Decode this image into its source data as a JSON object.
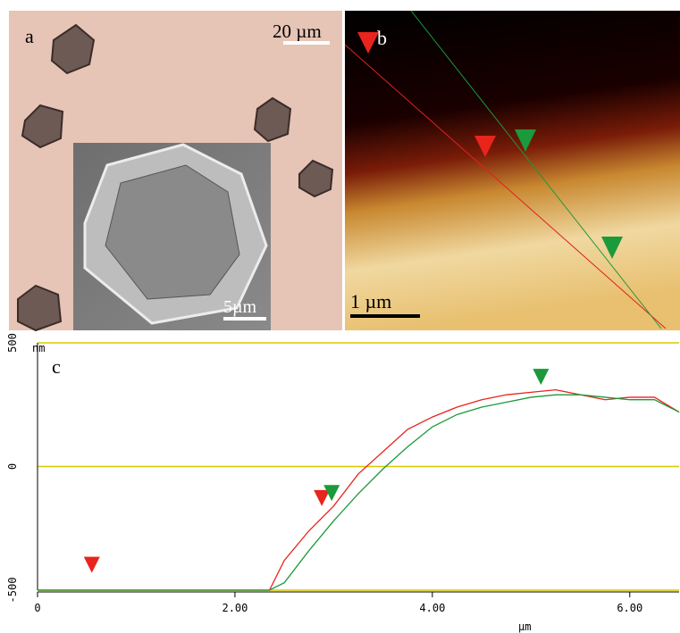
{
  "panel_a": {
    "label": "a",
    "scale_bar": "20 µm",
    "inset_scale_bar": "5µm"
  },
  "panel_b": {
    "label": "b",
    "scale_bar": "1 µm"
  },
  "chart_data": {
    "type": "line",
    "label": "c",
    "y_unit": "nm",
    "x_label": "µm",
    "x": [
      0,
      1,
      2,
      2.35,
      2.5,
      2.75,
      3.0,
      3.25,
      3.5,
      3.75,
      4.0,
      4.25,
      4.5,
      4.75,
      5.0,
      5.25,
      5.5,
      5.75,
      6.0,
      6.25,
      6.5
    ],
    "series": [
      {
        "color": "#e8241c",
        "values": [
          -500,
          -500,
          -500,
          -500,
          -380,
          -260,
          -160,
          -30,
          60,
          150,
          200,
          240,
          270,
          290,
          300,
          310,
          290,
          270,
          280,
          280,
          220
        ]
      },
      {
        "color": "#1a9a3a",
        "values": [
          -500,
          -500,
          -500,
          -500,
          -470,
          -340,
          -220,
          -110,
          -10,
          80,
          160,
          210,
          240,
          260,
          280,
          290,
          290,
          280,
          270,
          270,
          220
        ]
      }
    ],
    "cursors": [
      {
        "color": "#e8241c",
        "x": 0.55,
        "y": -430
      },
      {
        "color": "#e8241c",
        "x": 2.88,
        "y": -160
      },
      {
        "color": "#1a9a3a",
        "x": 2.98,
        "y": -140
      },
      {
        "color": "#1a9a3a",
        "x": 5.1,
        "y": 330
      }
    ],
    "xlim": [
      0,
      6.5
    ],
    "ylim": [
      -500,
      500
    ],
    "xticks": [
      {
        "value": 0,
        "label": "0"
      },
      {
        "value": 2,
        "label": "2.00"
      },
      {
        "value": 4,
        "label": "4.00"
      },
      {
        "value": 6,
        "label": "6.00"
      }
    ],
    "yticks": [
      -500,
      0,
      500
    ],
    "grid": true,
    "grid_color": "#d8c800"
  }
}
